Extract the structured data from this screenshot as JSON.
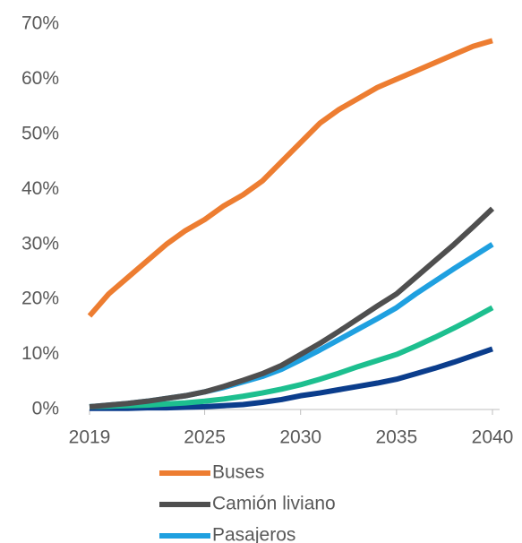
{
  "chart_data": {
    "type": "line",
    "x": [
      2019,
      2020,
      2021,
      2022,
      2023,
      2024,
      2025,
      2026,
      2027,
      2028,
      2029,
      2030,
      2031,
      2032,
      2033,
      2034,
      2035,
      2036,
      2037,
      2038,
      2039,
      2040
    ],
    "series": [
      {
        "name": "Buses",
        "color": "#ED7D31",
        "values": [
          17,
          21,
          24,
          27,
          30,
          32.5,
          34.5,
          37,
          39,
          41.5,
          45,
          48.5,
          52,
          54.5,
          56.5,
          58.5,
          60,
          61.5,
          63,
          64.5,
          66,
          67
        ]
      },
      {
        "name": "Camión liviano",
        "color": "#4F4F4F",
        "values": [
          0.5,
          0.8,
          1.1,
          1.5,
          2,
          2.5,
          3.2,
          4.2,
          5.3,
          6.5,
          8,
          10,
          12,
          14.2,
          16.5,
          18.8,
          21,
          24,
          27,
          30,
          33.2,
          36.5
        ]
      },
      {
        "name": "Pasajeros",
        "color": "#1FA0E0",
        "values": [
          0.5,
          0.8,
          1.1,
          1.5,
          2,
          2.5,
          3.2,
          4,
          5,
          6,
          7.3,
          9,
          10.8,
          12.7,
          14.6,
          16.5,
          18.5,
          21,
          23.3,
          25.6,
          27.8,
          30
        ]
      },
      {
        "color": "#1DBF8F",
        "values": [
          0.5,
          0.6,
          0.7,
          0.8,
          1,
          1.2,
          1.5,
          1.9,
          2.4,
          3,
          3.7,
          4.5,
          5.5,
          6.6,
          7.8,
          8.9,
          10,
          11.5,
          13.1,
          14.8,
          16.6,
          18.5
        ]
      },
      {
        "color": "#0B3D8C",
        "values": [
          0.2,
          0.2,
          0.2,
          0.3,
          0.3,
          0.4,
          0.5,
          0.7,
          0.9,
          1.3,
          1.8,
          2.5,
          3,
          3.6,
          4.2,
          4.8,
          5.5,
          6.5,
          7.5,
          8.6,
          9.8,
          11
        ]
      }
    ],
    "xlim": [
      2019,
      2040
    ],
    "xticks": [
      2019,
      2025,
      2030,
      2035,
      2040
    ],
    "ylim": [
      0,
      70
    ],
    "yticks": [
      {
        "value": 0,
        "label": "0%"
      },
      {
        "value": 10,
        "label": "10%"
      },
      {
        "value": 20,
        "label": "20%"
      },
      {
        "value": 30,
        "label": "30%"
      },
      {
        "value": 40,
        "label": "40%"
      },
      {
        "value": 50,
        "label": "50%"
      },
      {
        "value": 60,
        "label": "60%"
      },
      {
        "value": 70,
        "label": "70%"
      }
    ]
  }
}
